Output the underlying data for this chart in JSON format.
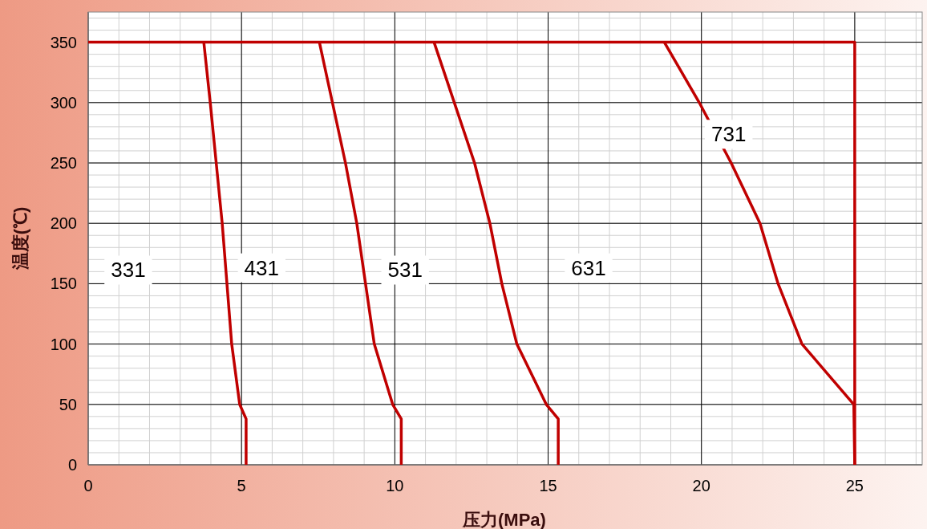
{
  "chart_data": {
    "type": "line",
    "xlabel": "压力(MPa)",
    "ylabel": "温度(℃)",
    "xlim": [
      0,
      27.2
    ],
    "ylim": [
      0,
      375
    ],
    "xticks": [
      0,
      5,
      10,
      15,
      20,
      25
    ],
    "yticks": [
      0,
      50,
      100,
      150,
      200,
      250,
      300,
      350
    ],
    "grid": true,
    "marker": "none",
    "line_style": "solid",
    "series": [
      {
        "color": "#c00000",
        "x": [
          0,
          25,
          25
        ],
        "values": [
          350,
          350,
          0
        ]
      },
      {
        "color": "#c00000",
        "x": [
          3.77,
          3.98,
          4.37,
          4.68,
          4.94,
          5.15,
          5.15
        ],
        "values": [
          350,
          300,
          200,
          100,
          50,
          38,
          0
        ]
      },
      {
        "color": "#c00000",
        "x": [
          7.54,
          8.39,
          8.76,
          9.33,
          9.93,
          10.21,
          10.21
        ],
        "values": [
          350,
          250,
          200,
          100,
          50,
          38,
          0
        ]
      },
      {
        "color": "#c00000",
        "x": [
          11.28,
          12.6,
          13.1,
          13.49,
          13.98,
          14.94,
          15.33,
          15.33
        ],
        "values": [
          350,
          250,
          200,
          150,
          100,
          50,
          38,
          0
        ]
      },
      {
        "color": "#c00000",
        "x": [
          18.79,
          19.93,
          20.97,
          21.91,
          22.5,
          23.28,
          24.97,
          25
        ],
        "values": [
          350,
          300,
          250,
          200,
          150,
          100,
          50,
          0
        ]
      }
    ],
    "annotations": [
      "331",
      "431",
      "531",
      "631",
      "731"
    ]
  }
}
